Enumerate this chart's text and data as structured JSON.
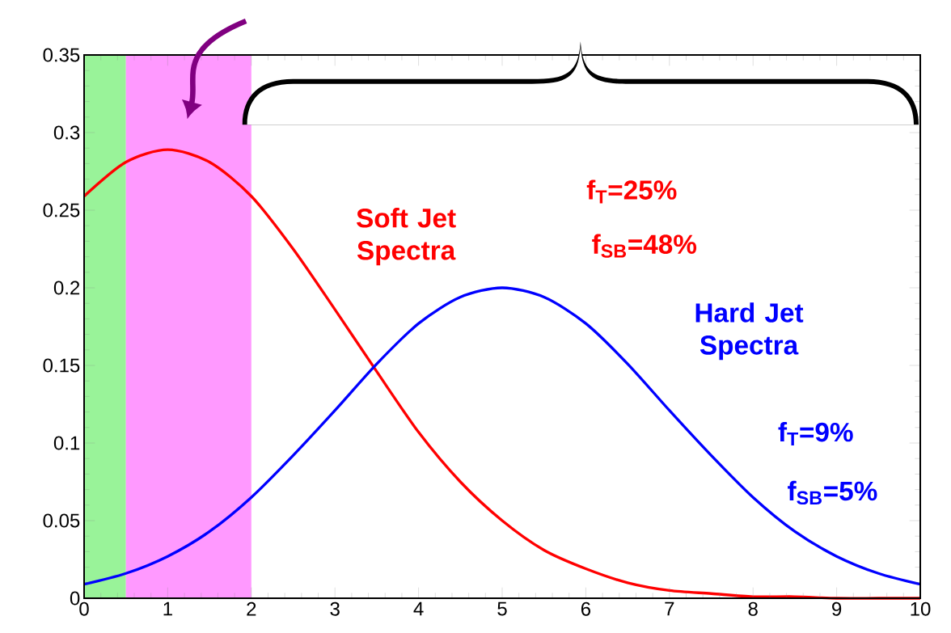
{
  "chart_data": {
    "type": "line",
    "x": [
      0,
      0.5,
      1,
      1.5,
      2,
      2.5,
      3,
      3.5,
      4,
      4.5,
      5,
      5.5,
      6,
      6.5,
      7,
      7.5,
      8,
      8.5,
      9,
      9.5,
      10
    ],
    "series": [
      {
        "color": "#ff0000",
        "values": [
          0.259,
          0.281,
          0.289,
          0.281,
          0.259,
          0.225,
          0.186,
          0.146,
          0.107,
          0.075,
          0.05,
          0.031,
          0.019,
          0.01,
          0.005,
          0.003,
          0.001,
          0.001,
          0,
          0,
          0
        ]
      },
      {
        "color": "#0000ff",
        "values": [
          0.009,
          0.016,
          0.027,
          0.043,
          0.065,
          0.092,
          0.121,
          0.151,
          0.177,
          0.194,
          0.2,
          0.194,
          0.177,
          0.151,
          0.121,
          0.092,
          0.065,
          0.043,
          0.027,
          0.016,
          0.009
        ]
      }
    ],
    "xlim": [
      0,
      10
    ],
    "ylim": [
      0,
      0.35
    ],
    "xticks": [
      0,
      1,
      2,
      3,
      4,
      5,
      6,
      7,
      8,
      9,
      10
    ],
    "yticks": [
      0,
      0.05,
      0.1,
      0.15,
      0.2,
      0.25,
      0.3,
      0.35
    ],
    "bands": [
      {
        "axis": "x",
        "from": 0,
        "to": 0.5,
        "color": "#99f399"
      },
      {
        "axis": "x",
        "from": 0.5,
        "to": 2,
        "color": "#ff99ff"
      }
    ],
    "annotations": [
      "Soft Jet Spectra",
      "f$_{T}$=25%",
      "f$_{SB}$=48%",
      "Hard Jet Spectra",
      "f$_{T}$=9%",
      "f$_{SB}$=5%"
    ],
    "grid": false,
    "marker": "none",
    "line_style": "solid"
  }
}
